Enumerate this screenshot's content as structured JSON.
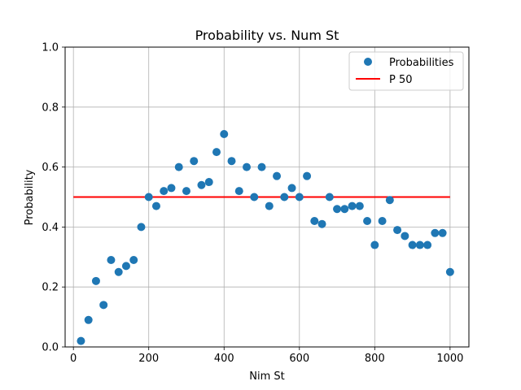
{
  "chart_data": {
    "type": "scatter",
    "title": "Probability vs. Num St",
    "xlabel": "Nim St",
    "ylabel": "Probability",
    "xlim": [
      -22,
      1050
    ],
    "ylim": [
      0,
      1.0
    ],
    "x_ticks": [
      0,
      200,
      400,
      600,
      800,
      1000
    ],
    "y_ticks": [
      0.0,
      0.2,
      0.4,
      0.6,
      0.8,
      1.0
    ],
    "x_tick_labels": [
      "0",
      "200",
      "400",
      "600",
      "800",
      "1000"
    ],
    "y_tick_labels": [
      "0.0",
      "0.2",
      "0.4",
      "0.6",
      "0.8",
      "1.0"
    ],
    "grid": true,
    "legend_position": "top-right",
    "series": [
      {
        "name": "Probabilities",
        "type": "scatter",
        "color": "#1f77b4",
        "x": [
          20,
          40,
          60,
          80,
          100,
          120,
          140,
          160,
          180,
          200,
          220,
          240,
          260,
          280,
          300,
          320,
          340,
          360,
          380,
          400,
          420,
          440,
          460,
          480,
          500,
          520,
          540,
          560,
          580,
          600,
          620,
          640,
          660,
          680,
          700,
          720,
          740,
          760,
          780,
          800,
          820,
          840,
          860,
          880,
          900,
          920,
          940,
          960,
          980,
          1000
        ],
        "y": [
          0.02,
          0.09,
          0.22,
          0.14,
          0.29,
          0.25,
          0.27,
          0.29,
          0.4,
          0.5,
          0.47,
          0.52,
          0.53,
          0.6,
          0.52,
          0.62,
          0.54,
          0.55,
          0.65,
          0.71,
          0.62,
          0.52,
          0.6,
          0.5,
          0.6,
          0.47,
          0.57,
          0.5,
          0.53,
          0.5,
          0.57,
          0.42,
          0.41,
          0.5,
          0.46,
          0.46,
          0.47,
          0.47,
          0.42,
          0.34,
          0.42,
          0.49,
          0.39,
          0.37,
          0.34,
          0.34,
          0.34,
          0.38,
          0.38,
          0.25
        ]
      },
      {
        "name": "P 50",
        "type": "line",
        "color": "#ff0000",
        "x": [
          0,
          1000
        ],
        "y": [
          0.5,
          0.5
        ]
      }
    ]
  }
}
